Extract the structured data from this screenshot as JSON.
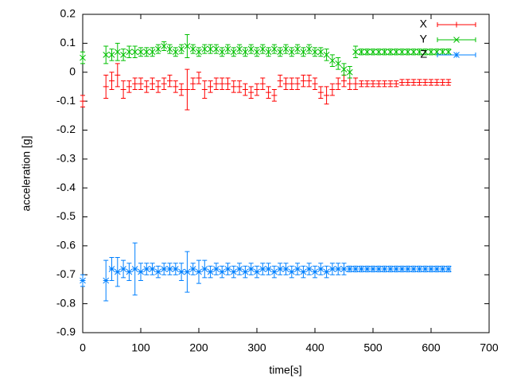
{
  "chart_data": {
    "type": "errorbar",
    "xlabel": "time[s]",
    "ylabel": "acceleration [g]",
    "xlim": [
      0,
      700
    ],
    "xticks": [
      0,
      100,
      200,
      300,
      400,
      500,
      600,
      700
    ],
    "ylim": [
      -0.9,
      0.2
    ],
    "yticks": [
      -0.9,
      -0.8,
      -0.7,
      -0.6,
      -0.5,
      -0.4,
      -0.3,
      -0.2,
      -0.1,
      0,
      0.1,
      0.2
    ],
    "grid": false,
    "legend": "top-right",
    "x": [
      0,
      40,
      50,
      60,
      70,
      80,
      90,
      100,
      110,
      120,
      130,
      140,
      150,
      160,
      170,
      180,
      190,
      200,
      210,
      220,
      230,
      240,
      250,
      260,
      270,
      280,
      290,
      300,
      310,
      320,
      330,
      340,
      350,
      360,
      370,
      380,
      390,
      400,
      410,
      420,
      430,
      440,
      450,
      460,
      470,
      480,
      490,
      500,
      510,
      520,
      530,
      540,
      550,
      560,
      570,
      580,
      590,
      600,
      610,
      620,
      630
    ],
    "series": [
      {
        "name": "X",
        "color": "#ff0000",
        "marker": "plus",
        "values": [
          -0.1,
          -0.05,
          -0.03,
          -0.01,
          -0.06,
          -0.05,
          -0.04,
          -0.04,
          -0.05,
          -0.04,
          -0.05,
          -0.04,
          -0.03,
          -0.05,
          -0.06,
          -0.06,
          -0.04,
          -0.02,
          -0.06,
          -0.05,
          -0.04,
          -0.04,
          -0.04,
          -0.05,
          -0.05,
          -0.06,
          -0.07,
          -0.06,
          -0.04,
          -0.07,
          -0.08,
          -0.03,
          -0.04,
          -0.04,
          -0.04,
          -0.03,
          -0.03,
          -0.04,
          -0.07,
          -0.08,
          -0.06,
          -0.04,
          -0.03,
          -0.04,
          -0.04,
          -0.04,
          -0.04,
          -0.04,
          -0.04,
          -0.04,
          -0.04,
          -0.04,
          -0.035,
          -0.035,
          -0.035,
          -0.035,
          -0.035,
          -0.035,
          -0.035,
          -0.035,
          -0.035
        ],
        "errors": [
          0.02,
          0.04,
          0.03,
          0.04,
          0.03,
          0.02,
          0.02,
          0.02,
          0.02,
          0.02,
          0.02,
          0.02,
          0.02,
          0.02,
          0.02,
          0.07,
          0.02,
          0.02,
          0.03,
          0.02,
          0.02,
          0.02,
          0.02,
          0.02,
          0.02,
          0.02,
          0.02,
          0.02,
          0.02,
          0.02,
          0.02,
          0.02,
          0.02,
          0.02,
          0.02,
          0.02,
          0.02,
          0.02,
          0.02,
          0.03,
          0.02,
          0.02,
          0.02,
          0.02,
          0.02,
          0.01,
          0.01,
          0.01,
          0.01,
          0.01,
          0.01,
          0.01,
          0.01,
          0.01,
          0.01,
          0.01,
          0.01,
          0.01,
          0.01,
          0.01,
          0.01
        ]
      },
      {
        "name": "Y",
        "color": "#00c000",
        "marker": "cross",
        "values": [
          0.05,
          0.06,
          0.06,
          0.07,
          0.06,
          0.07,
          0.07,
          0.07,
          0.07,
          0.07,
          0.08,
          0.09,
          0.08,
          0.07,
          0.08,
          0.09,
          0.08,
          0.07,
          0.08,
          0.08,
          0.08,
          0.07,
          0.08,
          0.07,
          0.08,
          0.07,
          0.08,
          0.07,
          0.08,
          0.07,
          0.08,
          0.07,
          0.08,
          0.07,
          0.08,
          0.07,
          0.08,
          0.07,
          0.07,
          0.06,
          0.04,
          0.03,
          0.01,
          0.0,
          0.07,
          0.07,
          0.07,
          0.07,
          0.07,
          0.07,
          0.07,
          0.07,
          0.07,
          0.07,
          0.07,
          0.07,
          0.07,
          0.07,
          0.07,
          0.07,
          0.07
        ],
        "errors": [
          0.02,
          0.03,
          0.02,
          0.03,
          0.02,
          0.02,
          0.02,
          0.015,
          0.015,
          0.015,
          0.015,
          0.015,
          0.015,
          0.015,
          0.015,
          0.04,
          0.015,
          0.015,
          0.015,
          0.015,
          0.015,
          0.015,
          0.015,
          0.015,
          0.015,
          0.015,
          0.015,
          0.015,
          0.015,
          0.015,
          0.015,
          0.015,
          0.015,
          0.015,
          0.015,
          0.015,
          0.015,
          0.015,
          0.015,
          0.02,
          0.02,
          0.02,
          0.02,
          0.02,
          0.02,
          0.01,
          0.01,
          0.01,
          0.01,
          0.01,
          0.01,
          0.01,
          0.01,
          0.01,
          0.01,
          0.01,
          0.01,
          0.01,
          0.01,
          0.01,
          0.01
        ]
      },
      {
        "name": "Z",
        "color": "#0080ff",
        "marker": "star",
        "values": [
          -0.72,
          -0.72,
          -0.68,
          -0.69,
          -0.68,
          -0.69,
          -0.68,
          -0.69,
          -0.68,
          -0.68,
          -0.69,
          -0.68,
          -0.68,
          -0.68,
          -0.69,
          -0.69,
          -0.68,
          -0.69,
          -0.68,
          -0.69,
          -0.68,
          -0.69,
          -0.68,
          -0.69,
          -0.68,
          -0.69,
          -0.68,
          -0.69,
          -0.68,
          -0.68,
          -0.69,
          -0.68,
          -0.68,
          -0.69,
          -0.68,
          -0.69,
          -0.68,
          -0.69,
          -0.68,
          -0.69,
          -0.68,
          -0.68,
          -0.68,
          -0.68,
          -0.68,
          -0.68,
          -0.68,
          -0.68,
          -0.68,
          -0.68,
          -0.68,
          -0.68,
          -0.68,
          -0.68,
          -0.68,
          -0.68,
          -0.68,
          -0.68,
          -0.68,
          -0.68,
          -0.68
        ],
        "errors": [
          0.02,
          0.07,
          0.04,
          0.05,
          0.03,
          0.03,
          0.09,
          0.03,
          0.02,
          0.02,
          0.02,
          0.02,
          0.02,
          0.02,
          0.03,
          0.07,
          0.02,
          0.04,
          0.03,
          0.02,
          0.02,
          0.02,
          0.02,
          0.02,
          0.02,
          0.02,
          0.02,
          0.02,
          0.02,
          0.02,
          0.02,
          0.02,
          0.02,
          0.02,
          0.02,
          0.02,
          0.02,
          0.02,
          0.02,
          0.02,
          0.02,
          0.02,
          0.02,
          0.01,
          0.01,
          0.01,
          0.01,
          0.01,
          0.01,
          0.01,
          0.01,
          0.01,
          0.01,
          0.01,
          0.01,
          0.01,
          0.01,
          0.01,
          0.01,
          0.01,
          0.01
        ]
      }
    ]
  }
}
